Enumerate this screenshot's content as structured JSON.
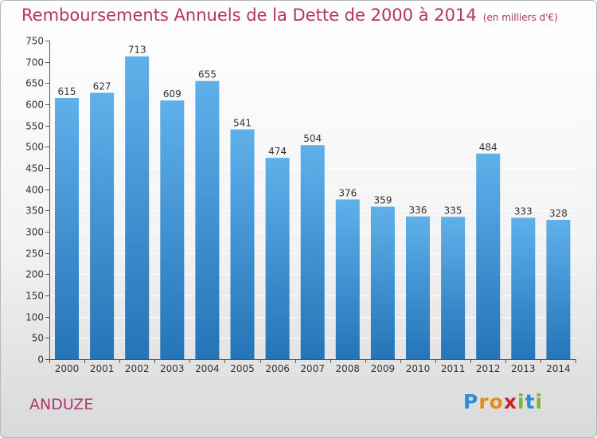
{
  "title": "Remboursements Annuels de la Dette de 2000 à 2014",
  "subtitle": "(en milliers d'€)",
  "commune": "ANDUZE",
  "logo": {
    "text": "Proxiti",
    "letters": [
      "P",
      "r",
      "o",
      "x",
      "i",
      "t",
      "i"
    ]
  },
  "colors": {
    "title": "#b5326a",
    "bar_top": "#5fb0ea",
    "bar_bottom": "#2474b8",
    "axis": "#555555",
    "grid": "#ffffff"
  },
  "chart_data": {
    "type": "bar",
    "categories": [
      "2000",
      "2001",
      "2002",
      "2003",
      "2004",
      "2005",
      "2006",
      "2007",
      "2008",
      "2009",
      "2010",
      "2011",
      "2012",
      "2013",
      "2014"
    ],
    "values": [
      615,
      627,
      713,
      609,
      655,
      541,
      474,
      504,
      376,
      359,
      336,
      335,
      484,
      333,
      328
    ],
    "value_labels": [
      "615",
      "627",
      "713",
      "609",
      "655",
      "541",
      "474",
      "504",
      "376",
      "359",
      "336",
      "335",
      "484",
      "333",
      "328"
    ],
    "ylim": [
      0,
      750
    ],
    "yticks": [
      0,
      50,
      100,
      150,
      200,
      250,
      300,
      350,
      400,
      450,
      500,
      550,
      600,
      650,
      700,
      750
    ],
    "ytick_labels": [
      "0",
      "50",
      "100",
      "150",
      "200",
      "250",
      "300",
      "350",
      "400",
      "450",
      "500",
      "550",
      "600",
      "650",
      "700",
      "750"
    ],
    "xlabel": "",
    "ylabel": "",
    "grid": true,
    "legend": false
  }
}
